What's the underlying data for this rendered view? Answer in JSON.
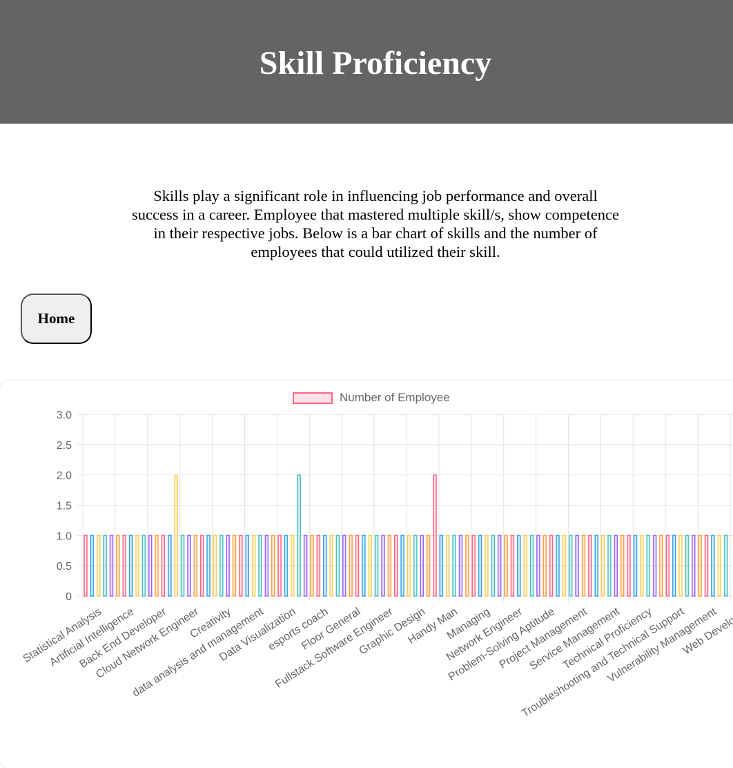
{
  "header": {
    "title": "Skill Proficiency"
  },
  "intro": {
    "text": "Skills play a significant role in influencing job performance and overall success in a career. Employee that mastered multiple skill/s, show competence in their respective jobs. Below is a bar chart of skills and the number of employees that could utilized their skill."
  },
  "nav": {
    "home_label": "Home"
  },
  "colors": {
    "header_bg": "#646464",
    "bar_palette": [
      "#ff6384",
      "#36a2eb",
      "#ffce56",
      "#4bc0c0",
      "#9966ff",
      "#ff9f40"
    ]
  },
  "chart_data": {
    "type": "bar",
    "legend": {
      "label": "Number of Employee",
      "position": "top"
    },
    "ylim": [
      0,
      3
    ],
    "yticks": [
      "0",
      "0.5",
      "1.0",
      "1.5",
      "2.0",
      "2.5",
      "3.0"
    ],
    "grid": true,
    "visible_tick_labels": [
      "Statistical Analysis",
      "Artificial Intelligence",
      "Back End Developer",
      "Cloud Network Engineer",
      "Creativity",
      "data analysis and management",
      "Data Visualization",
      "esports coach",
      "Floor General",
      "Fullstack Software Engineer",
      "Graphic Design",
      "Handy Man",
      "Managing",
      "Network Engineer",
      "Problem-Solving Aptitude",
      "Project Management",
      "Service Management",
      "Technical Proficiency",
      "Troubleshooting and Technical Support",
      "Vulnerability Management",
      "Web Developer"
    ],
    "values": [
      1,
      1,
      1,
      1,
      1,
      1,
      1,
      1,
      1,
      1,
      1,
      1,
      1,
      1,
      2,
      1,
      1,
      1,
      1,
      1,
      1,
      1,
      1,
      1,
      1,
      1,
      1,
      1,
      1,
      1,
      1,
      1,
      1,
      2,
      1,
      1,
      1,
      1,
      1,
      1,
      1,
      1,
      1,
      1,
      1,
      1,
      1,
      1,
      1,
      1,
      1,
      1,
      1,
      1,
      2,
      1,
      1,
      1,
      1,
      1,
      1,
      1,
      1,
      1,
      1,
      1,
      1,
      1,
      1,
      1,
      1,
      1,
      1,
      1,
      1,
      1,
      1,
      1,
      1,
      1,
      1,
      1,
      1,
      1,
      1,
      1,
      1,
      1,
      1,
      1,
      1,
      1,
      1,
      1,
      1,
      1,
      1,
      1,
      1,
      1
    ]
  }
}
